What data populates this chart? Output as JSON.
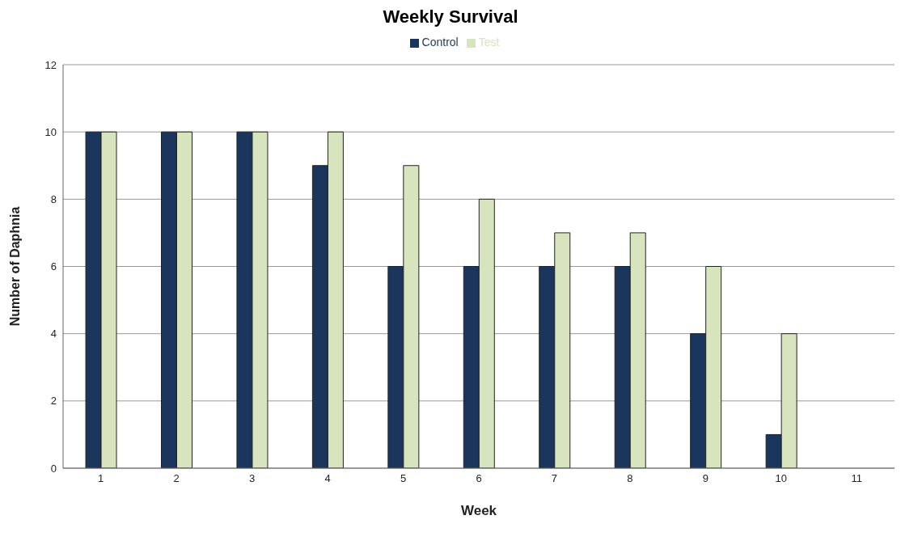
{
  "chart_data": {
    "type": "bar",
    "title": "Weekly Survival",
    "xlabel": "Week",
    "ylabel": "Number of Daphnia",
    "categories": [
      "1",
      "2",
      "3",
      "4",
      "5",
      "6",
      "7",
      "8",
      "9",
      "10",
      "11"
    ],
    "series": [
      {
        "name": "Control",
        "color": "#1b365d",
        "values": [
          10,
          10,
          10,
          9,
          6,
          6,
          6,
          6,
          4,
          1,
          null
        ]
      },
      {
        "name": "Test",
        "color": "#d7e4bd",
        "values": [
          10,
          10,
          10,
          10,
          9,
          8,
          7,
          7,
          6,
          4,
          null
        ]
      }
    ],
    "ylim": [
      0,
      12
    ],
    "yticks": [
      0,
      2,
      4,
      6,
      8,
      10,
      12
    ],
    "grid": "y",
    "legend": "top"
  }
}
